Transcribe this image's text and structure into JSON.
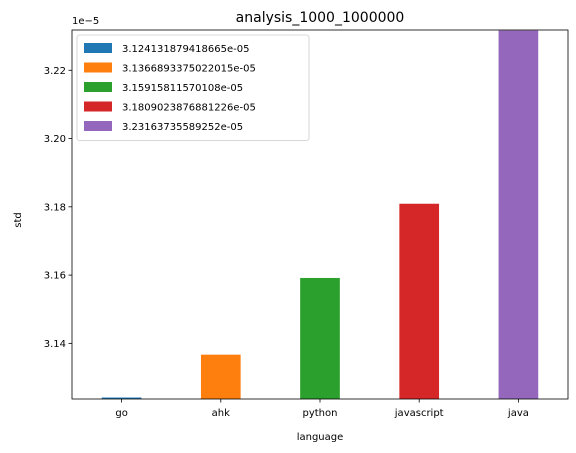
{
  "chart_data": {
    "type": "bar",
    "title": "analysis_1000_1000000",
    "xlabel": "language",
    "ylabel": "std",
    "offset_text": "1e−5",
    "categories": [
      "go",
      "ahk",
      "python",
      "javascript",
      "java"
    ],
    "values": [
      3.124131879418665,
      3.1366893375022014,
      3.15915811570108,
      3.1809023876881226,
      3.23163735589252
    ],
    "value_scale": "1e-5",
    "ylim": [
      3.1237,
      3.2318
    ],
    "yticks": [
      3.14,
      3.16,
      3.18,
      3.2,
      3.22
    ],
    "ytick_labels": [
      "3.14",
      "3.16",
      "3.18",
      "3.20",
      "3.22"
    ],
    "colors": [
      "#1f77b4",
      "#ff7f0e",
      "#2ca02c",
      "#d62728",
      "#9467bd"
    ],
    "legend": {
      "placement": "upper-left",
      "entries": [
        "3.124131879418665e-05",
        "3.1366893375022015e-05",
        "3.15915811570108e-05",
        "3.1809023876881226e-05",
        "3.23163735589252e-05"
      ]
    },
    "grid": false
  }
}
